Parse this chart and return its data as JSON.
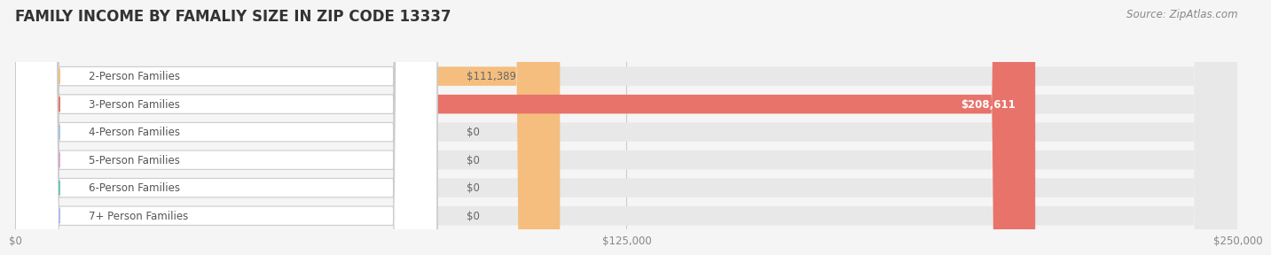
{
  "title": "FAMILY INCOME BY FAMALIY SIZE IN ZIP CODE 13337",
  "source": "Source: ZipAtlas.com",
  "categories": [
    "2-Person Families",
    "3-Person Families",
    "4-Person Families",
    "5-Person Families",
    "6-Person Families",
    "7+ Person Families"
  ],
  "values": [
    111389,
    208611,
    0,
    0,
    0,
    0
  ],
  "bar_colors": [
    "#f5be7e",
    "#e8736a",
    "#a8c4e0",
    "#d8a8d0",
    "#6ec8b8",
    "#b0b8e8"
  ],
  "value_labels": [
    "$111,389",
    "$208,611",
    "$0",
    "$0",
    "$0",
    "$0"
  ],
  "value_label_inside": [
    false,
    true,
    false,
    false,
    false,
    false
  ],
  "x_max": 250000,
  "x_ticks": [
    0,
    125000,
    250000
  ],
  "x_tick_labels": [
    "$0",
    "$125,000",
    "$250,000"
  ],
  "background_color": "#f5f5f5",
  "bar_background_color": "#e8e8e8",
  "title_fontsize": 12,
  "source_fontsize": 8.5,
  "label_fontsize": 8.5,
  "value_fontsize": 8.5
}
